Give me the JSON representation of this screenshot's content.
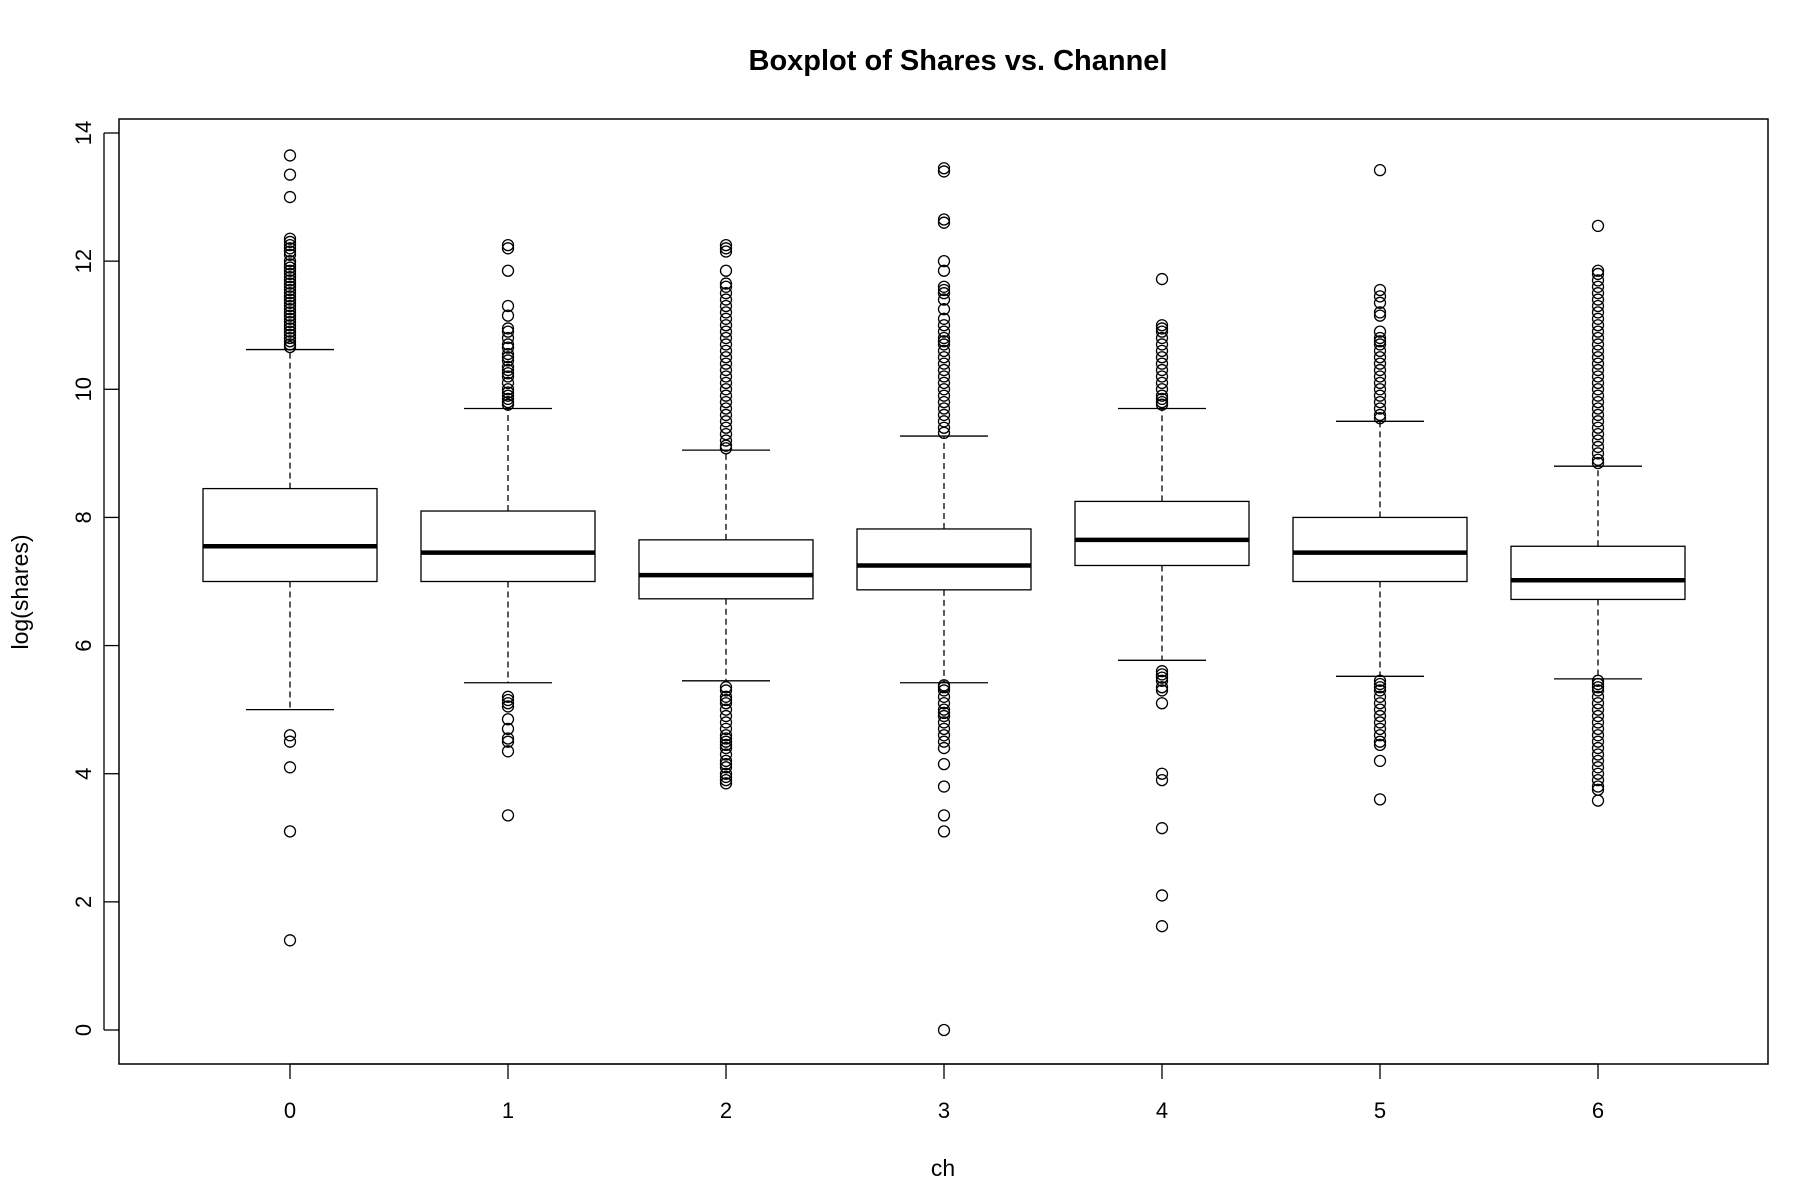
{
  "chart_data": {
    "type": "boxplot",
    "title": "Boxplot of Shares vs. Channel",
    "xlabel": "ch",
    "ylabel": "log(shares)",
    "ylim": [
      -0.55,
      14.2
    ],
    "y_ticks": [
      0,
      2,
      4,
      6,
      8,
      10,
      12,
      14
    ],
    "grid": false,
    "categories": [
      "0",
      "1",
      "2",
      "3",
      "4",
      "5",
      "6"
    ],
    "boxes": [
      {
        "category": "0",
        "whisker_low": 5.0,
        "q1": 7.0,
        "median": 7.55,
        "q3": 8.45,
        "whisker_high": 10.62,
        "outliers": [
          13.65,
          13.35,
          13.0,
          12.35,
          12.3,
          12.25,
          12.2,
          12.15,
          12.1,
          12.0,
          11.95,
          11.9,
          11.85,
          11.8,
          11.75,
          11.7,
          11.65,
          11.6,
          11.55,
          11.5,
          11.45,
          11.4,
          11.35,
          11.3,
          11.25,
          11.2,
          11.15,
          11.1,
          11.05,
          11.0,
          10.95,
          10.9,
          10.85,
          10.8,
          10.75,
          10.7,
          10.66,
          4.6,
          4.5,
          4.1,
          3.1,
          1.4
        ]
      },
      {
        "category": "1",
        "whisker_low": 5.42,
        "q1": 7.0,
        "median": 7.45,
        "q3": 8.1,
        "whisker_high": 9.7,
        "outliers": [
          12.25,
          12.2,
          11.85,
          11.3,
          11.15,
          10.95,
          10.9,
          10.8,
          10.7,
          10.65,
          10.55,
          10.5,
          10.45,
          10.35,
          10.3,
          10.25,
          10.2,
          10.1,
          10.0,
          9.95,
          9.9,
          9.85,
          9.8,
          9.76,
          5.2,
          5.15,
          5.1,
          5.05,
          4.85,
          4.7,
          4.55,
          4.5,
          4.35,
          3.35
        ]
      },
      {
        "category": "2",
        "whisker_low": 5.45,
        "q1": 6.73,
        "median": 7.1,
        "q3": 7.65,
        "whisker_high": 9.05,
        "outliers": [
          12.25,
          12.2,
          12.15,
          11.85,
          11.65,
          11.6,
          11.5,
          11.4,
          11.3,
          11.2,
          11.1,
          11.0,
          10.9,
          10.8,
          10.7,
          10.6,
          10.5,
          10.4,
          10.3,
          10.2,
          10.1,
          10.0,
          9.9,
          9.8,
          9.7,
          9.6,
          9.5,
          9.4,
          9.3,
          9.2,
          9.12,
          9.08,
          5.35,
          5.3,
          5.2,
          5.15,
          5.1,
          5.0,
          4.9,
          4.8,
          4.7,
          4.6,
          4.55,
          4.5,
          4.45,
          4.4,
          4.3,
          4.2,
          4.15,
          4.1,
          4.0,
          3.95,
          3.9,
          3.85
        ]
      },
      {
        "category": "3",
        "whisker_low": 5.42,
        "q1": 6.87,
        "median": 7.25,
        "q3": 7.82,
        "whisker_high": 9.27,
        "outliers": [
          13.45,
          13.4,
          12.65,
          12.6,
          12.0,
          11.85,
          11.6,
          11.55,
          11.5,
          11.4,
          11.25,
          11.1,
          11.0,
          10.9,
          10.8,
          10.75,
          10.7,
          10.6,
          10.5,
          10.4,
          10.3,
          10.2,
          10.1,
          10.0,
          9.9,
          9.8,
          9.7,
          9.6,
          9.5,
          9.4,
          9.32,
          5.38,
          5.35,
          5.3,
          5.2,
          5.1,
          5.0,
          4.95,
          4.9,
          4.8,
          4.7,
          4.6,
          4.5,
          4.4,
          4.15,
          3.8,
          3.35,
          3.1,
          0.0
        ]
      },
      {
        "category": "4",
        "whisker_low": 5.77,
        "q1": 7.25,
        "median": 7.65,
        "q3": 8.25,
        "whisker_high": 9.7,
        "outliers": [
          11.72,
          11.0,
          10.95,
          10.9,
          10.8,
          10.7,
          10.6,
          10.5,
          10.4,
          10.3,
          10.2,
          10.1,
          10.0,
          9.9,
          9.85,
          9.8,
          9.76,
          5.6,
          5.55,
          5.5,
          5.45,
          5.35,
          5.3,
          5.1,
          4.0,
          3.9,
          3.15,
          2.1,
          1.62
        ]
      },
      {
        "category": "5",
        "whisker_low": 5.52,
        "q1": 7.0,
        "median": 7.45,
        "q3": 8.0,
        "whisker_high": 9.5,
        "outliers": [
          13.42,
          11.55,
          11.45,
          11.35,
          11.2,
          11.15,
          10.9,
          10.8,
          10.75,
          10.7,
          10.6,
          10.5,
          10.4,
          10.3,
          10.2,
          10.1,
          10.0,
          9.9,
          9.8,
          9.7,
          9.6,
          9.55,
          5.45,
          5.4,
          5.35,
          5.3,
          5.2,
          5.1,
          5.0,
          4.9,
          4.8,
          4.7,
          4.6,
          4.5,
          4.45,
          4.2,
          3.6
        ]
      },
      {
        "category": "6",
        "whisker_low": 5.48,
        "q1": 6.72,
        "median": 7.02,
        "q3": 7.55,
        "whisker_high": 8.8,
        "outliers": [
          12.55,
          11.85,
          11.8,
          11.7,
          11.6,
          11.5,
          11.4,
          11.3,
          11.2,
          11.1,
          11.0,
          10.9,
          10.8,
          10.7,
          10.6,
          10.5,
          10.4,
          10.3,
          10.2,
          10.1,
          10.0,
          9.9,
          9.8,
          9.7,
          9.6,
          9.5,
          9.4,
          9.3,
          9.2,
          9.1,
          9.0,
          8.9,
          8.85,
          5.45,
          5.4,
          5.35,
          5.3,
          5.2,
          5.1,
          5.0,
          4.9,
          4.8,
          4.7,
          4.6,
          4.5,
          4.4,
          4.3,
          4.2,
          4.1,
          4.0,
          3.9,
          3.8,
          3.75,
          3.58
        ]
      }
    ]
  }
}
